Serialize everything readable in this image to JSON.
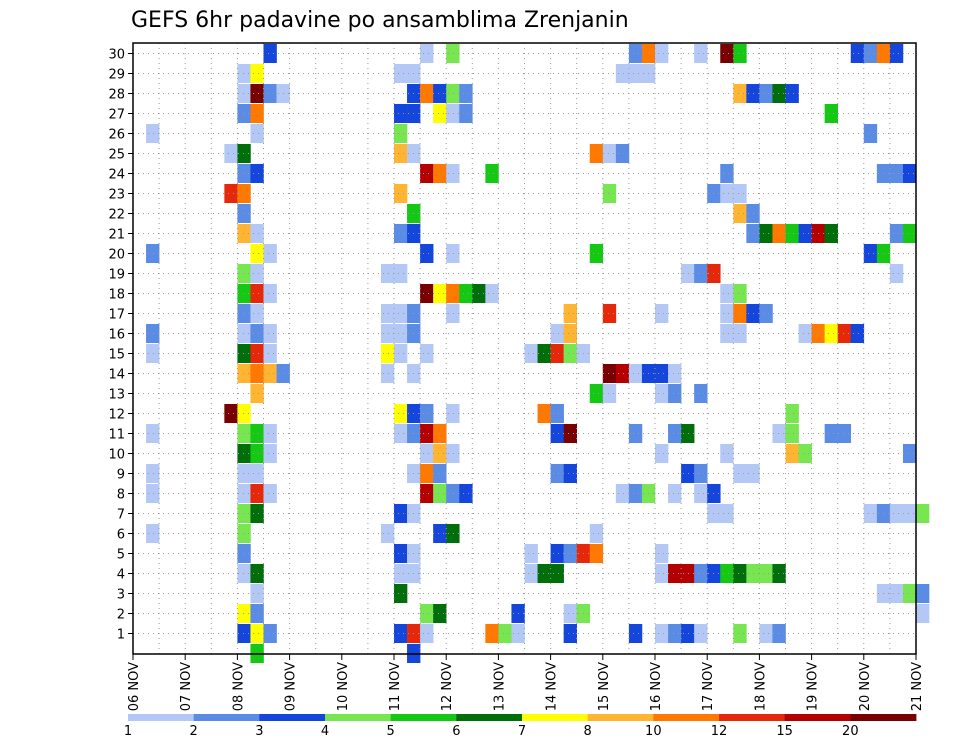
{
  "chart_data": {
    "type": "heatmap",
    "title": "GEFS 6hr padavine po ansamblima Zrenjanin",
    "xlabel": "",
    "ylabel": "",
    "x_ticks": [
      "06 NOV",
      "07 NOV",
      "08 NOV",
      "09 NOV",
      "10 NOV",
      "11 NOV",
      "12 NOV",
      "13 NOV",
      "14 NOV",
      "15 NOV",
      "16 NOV",
      "17 NOV",
      "18 NOV",
      "19 NOV",
      "20 NOV",
      "21 NOV"
    ],
    "y_ticks": [
      "1",
      "2",
      "3",
      "4",
      "5",
      "6",
      "7",
      "8",
      "9",
      "10",
      "11",
      "12",
      "13",
      "14",
      "15",
      "16",
      "17",
      "18",
      "19",
      "20",
      "21",
      "22",
      "23",
      "24",
      "25",
      "26",
      "27",
      "28",
      "29",
      "30"
    ],
    "x_range": [
      "06 NOV 00",
      "21 NOV 00"
    ],
    "y_range": [
      0,
      30
    ],
    "grid": true,
    "colorbar": {
      "labels": [
        "1",
        "2",
        "3",
        "4",
        "5",
        "6",
        "7",
        "8",
        "10",
        "12",
        "15",
        "20"
      ],
      "colors": [
        "#b4c8f5",
        "#5a8ce6",
        "#1446dc",
        "#78e650",
        "#14c814",
        "#006e0a",
        "#ffff00",
        "#ffb432",
        "#ff7800",
        "#e6280a",
        "#b40000",
        "#780000"
      ]
    },
    "colors": [
      "#b4c8f5",
      "#5a8ce6",
      "#1446dc",
      "#78e650",
      "#14c814",
      "#006e0a",
      "#ffff00",
      "#ffb432",
      "#ff7800",
      "#e6280a",
      "#b40000",
      "#780000"
    ],
    "cells": [
      [
        30,
        8.5,
        2
      ],
      [
        30,
        11.5,
        0
      ],
      [
        30,
        12.0,
        3
      ],
      [
        30,
        15.5,
        1
      ],
      [
        30,
        15.75,
        8
      ],
      [
        30,
        16.0,
        0
      ],
      [
        30,
        16.75,
        0
      ],
      [
        30,
        17.25,
        11
      ],
      [
        30,
        17.5,
        4
      ],
      [
        30,
        19.75,
        2
      ],
      [
        30,
        20.0,
        1
      ],
      [
        30,
        20.25,
        8
      ],
      [
        30,
        20.5,
        2
      ],
      [
        29,
        8.0,
        0
      ],
      [
        29,
        8.25,
        6
      ],
      [
        29,
        11.0,
        0
      ],
      [
        29,
        11.25,
        0
      ],
      [
        29,
        15.25,
        0
      ],
      [
        29,
        15.5,
        0
      ],
      [
        29,
        15.75,
        0
      ],
      [
        28,
        8.0,
        0
      ],
      [
        28,
        8.25,
        11
      ],
      [
        28,
        8.5,
        1
      ],
      [
        28,
        8.75,
        0
      ],
      [
        28,
        11.25,
        2
      ],
      [
        28,
        11.5,
        8
      ],
      [
        28,
        11.75,
        2
      ],
      [
        28,
        12.0,
        3
      ],
      [
        28,
        12.25,
        1
      ],
      [
        28,
        17.5,
        7
      ],
      [
        28,
        17.75,
        2
      ],
      [
        28,
        18.0,
        1
      ],
      [
        28,
        18.25,
        5
      ],
      [
        28,
        18.5,
        2
      ],
      [
        27,
        8.0,
        1
      ],
      [
        27,
        8.25,
        8
      ],
      [
        27,
        11.0,
        2
      ],
      [
        27,
        11.25,
        2
      ],
      [
        27,
        11.75,
        6
      ],
      [
        27,
        12.0,
        0
      ],
      [
        27,
        12.25,
        1
      ],
      [
        27,
        19.25,
        4
      ],
      [
        26,
        6.25,
        0
      ],
      [
        26,
        8.25,
        0
      ],
      [
        26,
        11.0,
        3
      ],
      [
        26,
        20.0,
        1
      ],
      [
        25,
        7.75,
        0
      ],
      [
        25,
        8.0,
        5
      ],
      [
        25,
        11.0,
        7
      ],
      [
        25,
        11.25,
        0
      ],
      [
        25,
        14.75,
        8
      ],
      [
        25,
        15.0,
        0
      ],
      [
        25,
        15.25,
        1
      ],
      [
        24,
        8.0,
        1
      ],
      [
        24,
        8.25,
        2
      ],
      [
        24,
        11.5,
        10
      ],
      [
        24,
        11.75,
        8
      ],
      [
        24,
        12.0,
        0
      ],
      [
        24,
        12.75,
        4
      ],
      [
        24,
        17.25,
        1
      ],
      [
        24,
        20.25,
        1
      ],
      [
        24,
        20.5,
        1
      ],
      [
        24,
        20.75,
        2
      ],
      [
        23,
        7.75,
        9
      ],
      [
        23,
        8.0,
        8
      ],
      [
        23,
        11.0,
        7
      ],
      [
        23,
        15.0,
        3
      ],
      [
        23,
        17.0,
        1
      ],
      [
        23,
        17.25,
        0
      ],
      [
        23,
        17.5,
        0
      ],
      [
        22,
        8.0,
        1
      ],
      [
        22,
        11.25,
        4
      ],
      [
        22,
        17.5,
        7
      ],
      [
        22,
        17.75,
        1
      ],
      [
        21,
        8.0,
        7
      ],
      [
        21,
        8.25,
        0
      ],
      [
        21,
        11.0,
        1
      ],
      [
        21,
        11.25,
        2
      ],
      [
        21,
        17.75,
        1
      ],
      [
        21,
        18.0,
        5
      ],
      [
        21,
        18.25,
        8
      ],
      [
        21,
        18.5,
        4
      ],
      [
        21,
        18.75,
        2
      ],
      [
        21,
        19.0,
        10
      ],
      [
        21,
        19.25,
        5
      ],
      [
        21,
        20.5,
        1
      ],
      [
        21,
        20.75,
        4
      ],
      [
        20,
        6.25,
        1
      ],
      [
        20,
        8.25,
        6
      ],
      [
        20,
        8.5,
        0
      ],
      [
        20,
        11.5,
        2
      ],
      [
        20,
        12.0,
        0
      ],
      [
        20,
        14.75,
        4
      ],
      [
        20,
        20.0,
        2
      ],
      [
        20,
        20.25,
        4
      ],
      [
        19,
        8.0,
        3
      ],
      [
        19,
        8.25,
        0
      ],
      [
        19,
        10.75,
        0
      ],
      [
        19,
        11.0,
        0
      ],
      [
        19,
        16.5,
        0
      ],
      [
        19,
        16.75,
        1
      ],
      [
        19,
        17.0,
        9
      ],
      [
        19,
        20.5,
        0
      ],
      [
        18,
        8.0,
        4
      ],
      [
        18,
        8.25,
        9
      ],
      [
        18,
        8.5,
        0
      ],
      [
        18,
        11.5,
        11
      ],
      [
        18,
        11.75,
        6
      ],
      [
        18,
        12.0,
        8
      ],
      [
        18,
        12.25,
        4
      ],
      [
        18,
        12.5,
        5
      ],
      [
        18,
        12.75,
        0
      ],
      [
        18,
        17.25,
        0
      ],
      [
        18,
        17.5,
        3
      ],
      [
        17,
        8.0,
        1
      ],
      [
        17,
        8.25,
        0
      ],
      [
        17,
        10.75,
        0
      ],
      [
        17,
        11.0,
        0
      ],
      [
        17,
        11.25,
        1
      ],
      [
        17,
        12.0,
        0
      ],
      [
        17,
        14.25,
        7
      ],
      [
        17,
        15.0,
        9
      ],
      [
        17,
        16.0,
        0
      ],
      [
        17,
        17.25,
        0
      ],
      [
        17,
        17.5,
        8
      ],
      [
        17,
        17.75,
        2
      ],
      [
        17,
        18.0,
        1
      ],
      [
        16,
        6.25,
        1
      ],
      [
        16,
        8.0,
        0
      ],
      [
        16,
        8.25,
        1
      ],
      [
        16,
        8.5,
        0
      ],
      [
        16,
        10.75,
        0
      ],
      [
        16,
        11.0,
        0
      ],
      [
        16,
        11.25,
        1
      ],
      [
        16,
        14.0,
        0
      ],
      [
        16,
        14.25,
        7
      ],
      [
        16,
        17.25,
        0
      ],
      [
        16,
        17.5,
        0
      ],
      [
        16,
        18.75,
        0
      ],
      [
        16,
        19.0,
        8
      ],
      [
        16,
        19.25,
        6
      ],
      [
        16,
        19.5,
        9
      ],
      [
        16,
        19.75,
        2
      ],
      [
        15,
        6.25,
        0
      ],
      [
        15,
        8.0,
        5
      ],
      [
        15,
        8.25,
        9
      ],
      [
        15,
        8.5,
        0
      ],
      [
        15,
        10.75,
        6
      ],
      [
        15,
        11.0,
        0
      ],
      [
        15,
        11.5,
        0
      ],
      [
        15,
        13.5,
        0
      ],
      [
        15,
        13.75,
        5
      ],
      [
        15,
        14.0,
        9
      ],
      [
        15,
        14.25,
        3
      ],
      [
        15,
        14.5,
        0
      ],
      [
        14,
        8.0,
        7
      ],
      [
        14,
        8.25,
        8
      ],
      [
        14,
        8.5,
        7
      ],
      [
        14,
        8.75,
        1
      ],
      [
        14,
        10.75,
        0
      ],
      [
        14,
        11.25,
        0
      ],
      [
        14,
        15.0,
        11
      ],
      [
        14,
        15.25,
        10
      ],
      [
        14,
        15.5,
        0
      ],
      [
        14,
        15.75,
        2
      ],
      [
        14,
        16.0,
        2
      ],
      [
        14,
        16.25,
        0
      ],
      [
        13,
        8.25,
        7
      ],
      [
        13,
        14.75,
        4
      ],
      [
        13,
        15.0,
        0
      ],
      [
        13,
        16.0,
        0
      ],
      [
        13,
        16.25,
        1
      ],
      [
        13,
        16.75,
        1
      ],
      [
        12,
        7.75,
        11
      ],
      [
        12,
        8.0,
        6
      ],
      [
        12,
        11.0,
        6
      ],
      [
        12,
        11.25,
        2
      ],
      [
        12,
        11.5,
        1
      ],
      [
        12,
        12.0,
        0
      ],
      [
        12,
        13.75,
        8
      ],
      [
        12,
        14.0,
        1
      ],
      [
        12,
        18.5,
        3
      ],
      [
        11,
        6.25,
        0
      ],
      [
        11,
        8.0,
        3
      ],
      [
        11,
        8.25,
        4
      ],
      [
        11,
        8.5,
        0
      ],
      [
        11,
        11.0,
        0
      ],
      [
        11,
        11.25,
        1
      ],
      [
        11,
        11.5,
        10
      ],
      [
        11,
        11.75,
        8
      ],
      [
        11,
        14.0,
        2
      ],
      [
        11,
        14.25,
        11
      ],
      [
        11,
        15.5,
        1
      ],
      [
        11,
        16.25,
        1
      ],
      [
        11,
        16.5,
        5
      ],
      [
        11,
        18.25,
        0
      ],
      [
        11,
        18.5,
        3
      ],
      [
        11,
        19.25,
        1
      ],
      [
        11,
        19.5,
        1
      ],
      [
        10,
        8.0,
        5
      ],
      [
        10,
        8.25,
        4
      ],
      [
        10,
        8.5,
        0
      ],
      [
        10,
        11.5,
        0
      ],
      [
        10,
        11.75,
        7
      ],
      [
        10,
        12.0,
        0
      ],
      [
        10,
        16.0,
        0
      ],
      [
        10,
        17.25,
        0
      ],
      [
        10,
        18.5,
        7
      ],
      [
        10,
        18.75,
        3
      ],
      [
        10,
        20.75,
        1
      ],
      [
        9,
        6.25,
        0
      ],
      [
        9,
        8.0,
        0
      ],
      [
        9,
        8.25,
        0
      ],
      [
        9,
        11.25,
        0
      ],
      [
        9,
        11.5,
        8
      ],
      [
        9,
        11.75,
        1
      ],
      [
        9,
        14.0,
        1
      ],
      [
        9,
        14.25,
        2
      ],
      [
        9,
        16.5,
        2
      ],
      [
        9,
        16.75,
        1
      ],
      [
        9,
        17.5,
        0
      ],
      [
        9,
        17.75,
        0
      ],
      [
        8,
        6.25,
        0
      ],
      [
        8,
        8.0,
        0
      ],
      [
        8,
        8.25,
        9
      ],
      [
        8,
        8.5,
        0
      ],
      [
        8,
        11.5,
        10
      ],
      [
        8,
        11.75,
        3
      ],
      [
        8,
        12.0,
        1
      ],
      [
        8,
        12.25,
        2
      ],
      [
        8,
        15.25,
        0
      ],
      [
        8,
        15.5,
        1
      ],
      [
        8,
        15.75,
        3
      ],
      [
        8,
        16.25,
        0
      ],
      [
        8,
        16.75,
        0
      ],
      [
        8,
        17.0,
        2
      ],
      [
        7,
        8.0,
        3
      ],
      [
        7,
        8.25,
        5
      ],
      [
        7,
        11.0,
        2
      ],
      [
        7,
        11.25,
        0
      ],
      [
        7,
        17.0,
        0
      ],
      [
        7,
        17.25,
        0
      ],
      [
        7,
        20.0,
        0
      ],
      [
        7,
        20.25,
        1
      ],
      [
        7,
        20.5,
        0
      ],
      [
        7,
        20.75,
        0
      ],
      [
        7,
        21.0,
        3
      ],
      [
        6,
        6.25,
        0
      ],
      [
        6,
        8.0,
        3
      ],
      [
        6,
        10.75,
        0
      ],
      [
        6,
        11.75,
        2
      ],
      [
        6,
        12.0,
        5
      ],
      [
        6,
        14.75,
        0
      ],
      [
        5,
        8.0,
        1
      ],
      [
        5,
        11.0,
        2
      ],
      [
        5,
        11.25,
        0
      ],
      [
        5,
        13.5,
        0
      ],
      [
        5,
        14.0,
        2
      ],
      [
        5,
        14.25,
        1
      ],
      [
        5,
        14.5,
        9
      ],
      [
        5,
        14.75,
        8
      ],
      [
        5,
        16.0,
        0
      ],
      [
        4,
        8.0,
        0
      ],
      [
        4,
        8.25,
        5
      ],
      [
        4,
        11.0,
        0
      ],
      [
        4,
        11.25,
        0
      ],
      [
        4,
        13.5,
        0
      ],
      [
        4,
        13.75,
        5
      ],
      [
        4,
        14.0,
        5
      ],
      [
        4,
        16.0,
        0
      ],
      [
        4,
        16.25,
        10
      ],
      [
        4,
        16.5,
        10
      ],
      [
        4,
        16.75,
        1
      ],
      [
        4,
        17.0,
        2
      ],
      [
        4,
        17.25,
        4
      ],
      [
        4,
        17.5,
        5
      ],
      [
        4,
        17.75,
        3
      ],
      [
        4,
        18.0,
        3
      ],
      [
        4,
        18.25,
        5
      ],
      [
        3,
        8.25,
        0
      ],
      [
        3,
        11.0,
        5
      ],
      [
        3,
        20.25,
        0
      ],
      [
        3,
        20.5,
        0
      ],
      [
        3,
        20.75,
        3
      ],
      [
        3,
        21.0,
        1
      ],
      [
        2,
        8.0,
        6
      ],
      [
        2,
        8.25,
        1
      ],
      [
        2,
        11.5,
        3
      ],
      [
        2,
        11.75,
        5
      ],
      [
        2,
        13.25,
        2
      ],
      [
        2,
        14.25,
        0
      ],
      [
        2,
        14.5,
        3
      ],
      [
        2,
        21.0,
        0
      ],
      [
        1,
        8.0,
        2
      ],
      [
        1,
        8.25,
        6
      ],
      [
        1,
        8.5,
        1
      ],
      [
        1,
        11.0,
        2
      ],
      [
        1,
        11.25,
        9
      ],
      [
        1,
        11.5,
        0
      ],
      [
        1,
        12.75,
        8
      ],
      [
        1,
        13.0,
        3
      ],
      [
        1,
        13.25,
        0
      ],
      [
        1,
        14.25,
        2
      ],
      [
        1,
        15.5,
        2
      ],
      [
        1,
        16.0,
        0
      ],
      [
        1,
        16.25,
        1
      ],
      [
        1,
        16.5,
        2
      ],
      [
        1,
        16.75,
        0
      ],
      [
        1,
        17.5,
        3
      ],
      [
        1,
        18.0,
        0
      ],
      [
        1,
        18.25,
        1
      ],
      [
        0,
        8.25,
        4
      ],
      [
        0,
        11.25,
        2
      ]
    ]
  }
}
